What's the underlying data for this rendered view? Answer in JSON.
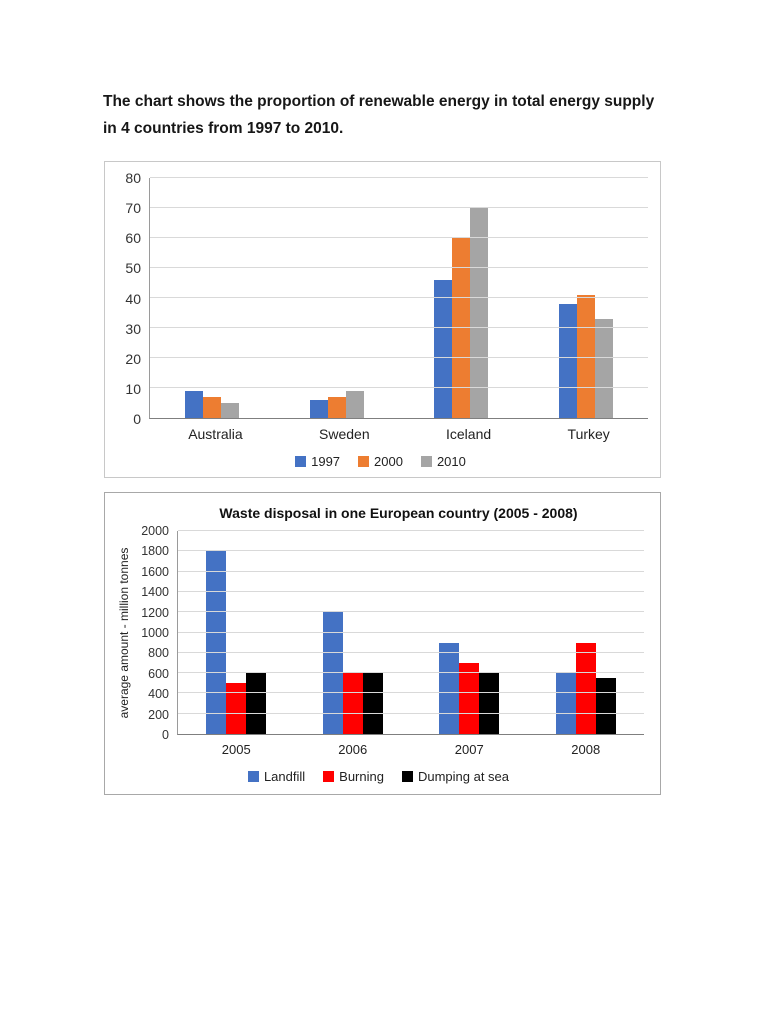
{
  "page": {
    "heading_line1": "The chart shows the proportion of renewable energy in total energy supply",
    "heading_line2": "in 4 countries from 1997 to 2010."
  },
  "chart_data": [
    {
      "type": "bar",
      "title": "",
      "xlabel": "",
      "ylabel": "",
      "categories": [
        "Australia",
        "Sweden",
        "Iceland",
        "Turkey"
      ],
      "series": [
        {
          "name": "1997",
          "color": "#4472c4",
          "values": [
            9,
            6,
            46,
            38
          ]
        },
        {
          "name": "2000",
          "color": "#ed7d31",
          "values": [
            7,
            7,
            60,
            41
          ]
        },
        {
          "name": "2010",
          "color": "#a5a5a5",
          "values": [
            5,
            9,
            70,
            33
          ]
        }
      ],
      "ylim": [
        0,
        80
      ],
      "yticks": [
        0,
        10,
        20,
        30,
        40,
        50,
        60,
        70,
        80
      ],
      "grid": true,
      "legend_position": "bottom"
    },
    {
      "type": "bar",
      "title": "Waste disposal in one European country (2005 - 2008)",
      "xlabel": "",
      "ylabel": "average amount - million tonnes",
      "categories": [
        "2005",
        "2006",
        "2007",
        "2008"
      ],
      "series": [
        {
          "name": "Landfill",
          "color": "#4472c4",
          "values": [
            1800,
            1200,
            900,
            600
          ]
        },
        {
          "name": "Burning",
          "color": "#ff0000",
          "values": [
            500,
            600,
            700,
            900
          ]
        },
        {
          "name": "Dumping at sea",
          "color": "#000000",
          "values": [
            600,
            600,
            600,
            550
          ]
        }
      ],
      "ylim": [
        0,
        2000
      ],
      "yticks": [
        0,
        200,
        400,
        600,
        800,
        1000,
        1200,
        1400,
        1600,
        1800,
        2000
      ],
      "grid": true,
      "legend_position": "bottom"
    }
  ]
}
